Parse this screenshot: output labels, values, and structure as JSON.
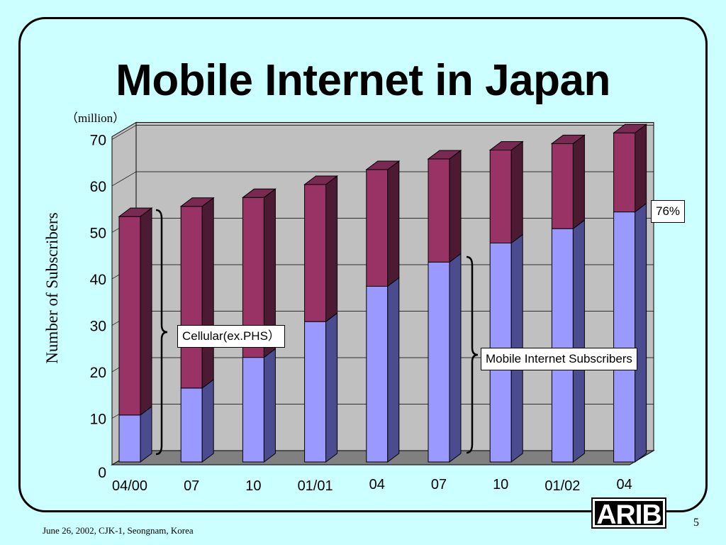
{
  "slide": {
    "title": "Mobile Internet in Japan",
    "footer": "June 26, 2002, CJK-1, Seongnam, Korea",
    "page_number": "5",
    "logo_text": "ARIB"
  },
  "chart_data": {
    "type": "bar",
    "stacked": true,
    "title": "Mobile Internet in Japan",
    "unit": "（million）",
    "ylabel": "Number of Subscribers",
    "xlabel": "",
    "ylim": [
      0,
      70
    ],
    "yticks": [
      "0",
      "10",
      "20",
      "30",
      "40",
      "50",
      "60",
      "70"
    ],
    "categories": [
      "04/00",
      "07",
      "10",
      "01/01",
      "04",
      "07",
      "10",
      "01/02",
      "04"
    ],
    "series": [
      {
        "values": [
          10.1,
          15.9,
          22.5,
          30.2,
          37.8,
          43.0,
          47.1,
          50.2,
          53.8
        ],
        "color": "#9999ff"
      },
      {
        "values": [
          42.7,
          39.1,
          34.4,
          29.5,
          25.1,
          22.2,
          20.0,
          18.3,
          17.0
        ],
        "color": "#993366"
      }
    ],
    "annotations": {
      "cellular": "Cellular(ex.PHS）",
      "mobile_internet": "Mobile Internet Subscribers",
      "percent": "76%"
    },
    "grid": true
  }
}
